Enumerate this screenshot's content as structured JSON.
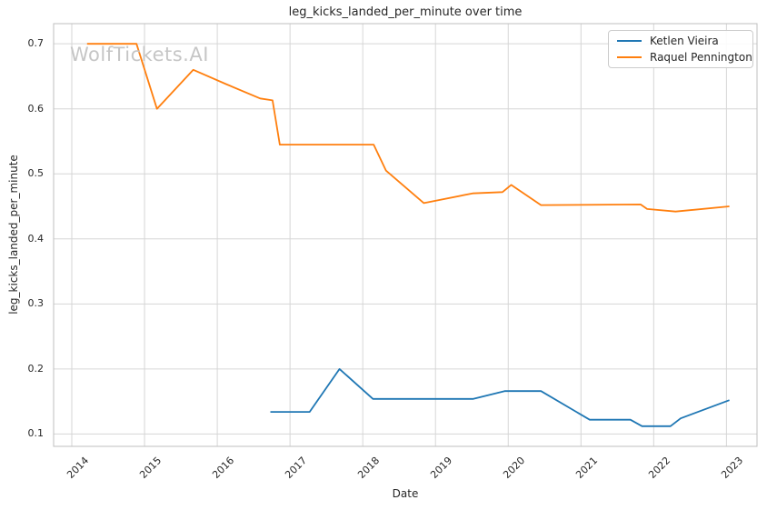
{
  "figure": {
    "watermark": "WolfTickets.AI"
  },
  "chart_data": {
    "type": "line",
    "title": "leg_kicks_landed_per_minute over time",
    "xlabel": "Date",
    "ylabel": "leg_kicks_landed_per_minute",
    "grid": true,
    "legend_position": "upper right",
    "x_ticks": [
      2014,
      2015,
      2016,
      2017,
      2018,
      2019,
      2020,
      2021,
      2022,
      2023
    ],
    "y_ticks": [
      0.1,
      0.2,
      0.3,
      0.4,
      0.5,
      0.6,
      0.7
    ],
    "xlim": [
      2013.75,
      2023.42
    ],
    "ylim": [
      0.081,
      0.731
    ],
    "series": [
      {
        "name": "Ketlen Vieira",
        "color": "#1f77b4",
        "x": [
          2016.73,
          2017.27,
          2017.68,
          2018.14,
          2019.52,
          2019.95,
          2020.45,
          2021.12,
          2021.68,
          2021.84,
          2022.23,
          2022.37,
          2023.04
        ],
        "y": [
          0.134,
          0.134,
          0.2,
          0.154,
          0.154,
          0.166,
          0.166,
          0.122,
          0.122,
          0.112,
          0.112,
          0.124,
          0.152
        ]
      },
      {
        "name": "Raquel Pennington",
        "color": "#ff7f0e",
        "x": [
          2014.21,
          2014.89,
          2015.17,
          2015.67,
          2016.12,
          2016.59,
          2016.76,
          2016.86,
          2018.15,
          2018.32,
          2018.84,
          2019.51,
          2019.92,
          2020.04,
          2020.45,
          2021.82,
          2021.91,
          2022.3,
          2023.04
        ],
        "y": [
          0.7,
          0.7,
          0.6,
          0.66,
          0.638,
          0.616,
          0.613,
          0.545,
          0.545,
          0.505,
          0.455,
          0.47,
          0.472,
          0.483,
          0.452,
          0.453,
          0.446,
          0.442,
          0.45
        ]
      }
    ]
  }
}
